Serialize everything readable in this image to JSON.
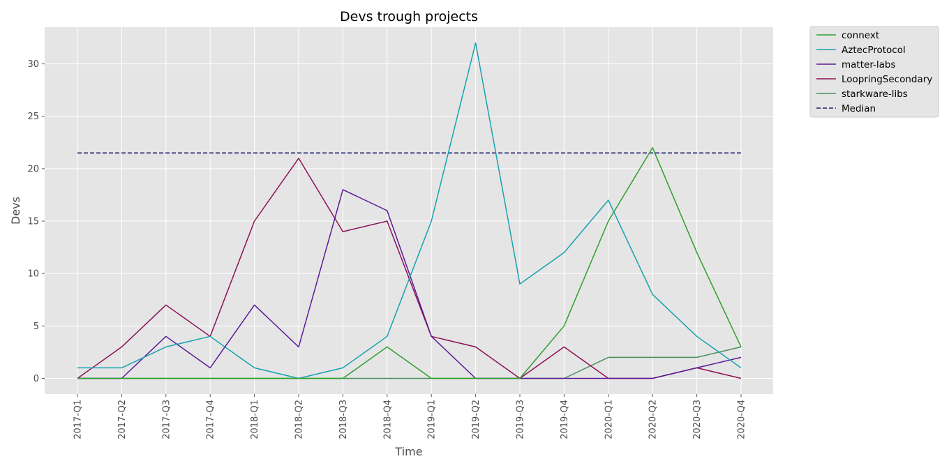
{
  "chart_data": {
    "type": "line",
    "title": "Devs trough projects",
    "xlabel": "Time",
    "ylabel": "Devs",
    "categories": [
      "2017-Q1",
      "2017-Q2",
      "2017-Q3",
      "2017-Q4",
      "2018-Q1",
      "2018-Q2",
      "2018-Q3",
      "2018-Q4",
      "2019-Q1",
      "2019-Q2",
      "2019-Q3",
      "2019-Q4",
      "2020-Q1",
      "2020-Q2",
      "2020-Q3",
      "2020-Q4"
    ],
    "ylim": [
      -1.5,
      33.5
    ],
    "yticks": [
      0,
      5,
      10,
      15,
      20,
      25,
      30
    ],
    "grid": true,
    "legend_position": "outside-top-right",
    "series": [
      {
        "name": "connext",
        "color": "#2ca02c",
        "dashed": false,
        "values": [
          0,
          0,
          0,
          0,
          0,
          0,
          0,
          3,
          0,
          0,
          0,
          5,
          15,
          22,
          12,
          3
        ]
      },
      {
        "name": "AztecProtocol",
        "color": "#17a2b0",
        "dashed": false,
        "values": [
          1,
          1,
          3,
          4,
          1,
          0,
          1,
          4,
          15,
          32,
          9,
          12,
          17,
          8,
          4,
          1
        ]
      },
      {
        "name": "matter-labs",
        "color": "#5b1a96",
        "dashed": false,
        "values": [
          0,
          0,
          4,
          1,
          7,
          3,
          18,
          16,
          4,
          0,
          0,
          0,
          0,
          0,
          1,
          2
        ]
      },
      {
        "name": "LoopringSecondary",
        "color": "#8b1157",
        "dashed": false,
        "values": [
          0,
          3,
          7,
          4,
          15,
          21,
          14,
          15,
          4,
          3,
          0,
          3,
          0,
          0,
          1,
          0
        ]
      },
      {
        "name": "starkware-libs",
        "color": "#4a8f5e",
        "dashed": false,
        "values": [
          0,
          0,
          0,
          0,
          0,
          0,
          0,
          0,
          0,
          0,
          0,
          0,
          2,
          2,
          2,
          3
        ]
      },
      {
        "name": "Median",
        "color": "#1f1f6e",
        "dashed": true,
        "values": [
          21.5,
          21.5,
          21.5,
          21.5,
          21.5,
          21.5,
          21.5,
          21.5,
          21.5,
          21.5,
          21.5,
          21.5,
          21.5,
          21.5,
          21.5,
          21.5
        ]
      }
    ]
  }
}
